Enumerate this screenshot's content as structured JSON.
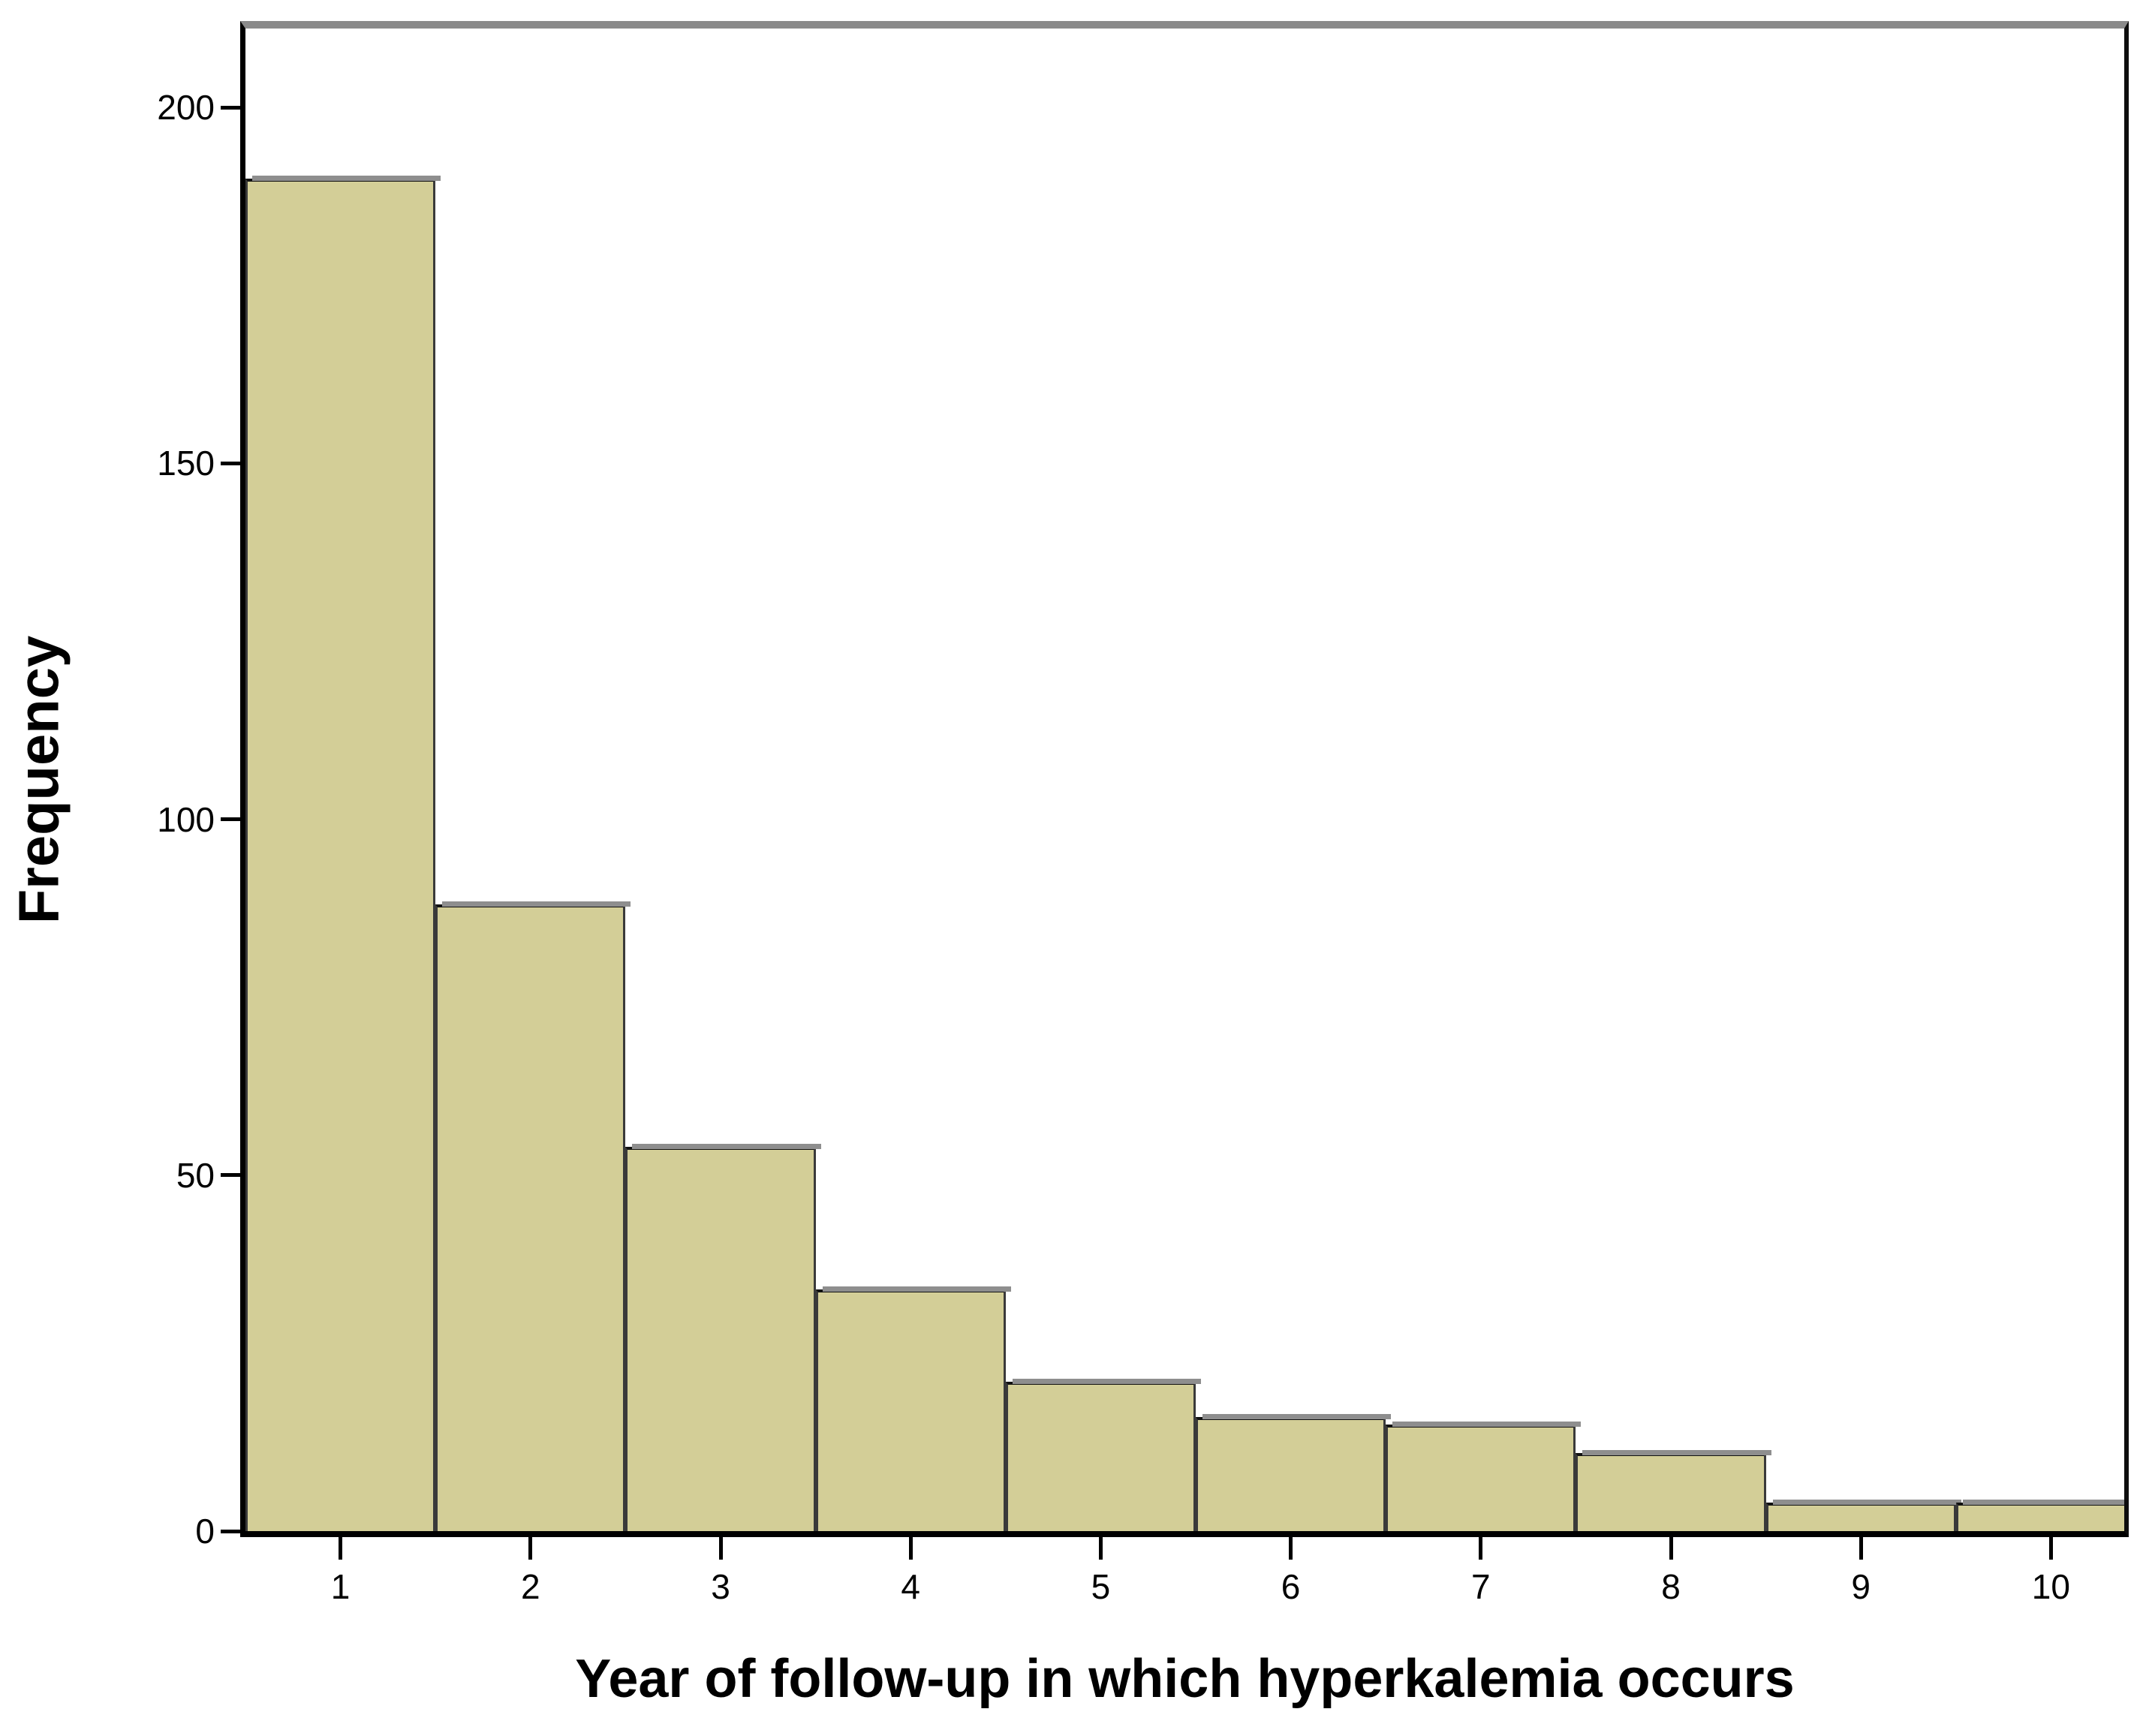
{
  "title": "Year of follow-up in which hyperkalemia occurs",
  "y_axis": {
    "label": "Frequency",
    "tick_labels": [
      "0",
      "50",
      "100",
      "150",
      "200"
    ]
  },
  "x_axis": {
    "label": "Year of follow-up in which hyperkalemia occurs",
    "tick_labels": [
      "1",
      "2",
      "3",
      "4",
      "5",
      "6",
      "7",
      "8",
      "9",
      "10"
    ]
  },
  "colors": {
    "bar_fill": "#d3ce97",
    "bar_border": "#3a3a3a",
    "bar_top_edge": "#111111",
    "bar_shadow": "#8e8e8e",
    "axis": "#000000",
    "axis_right": "#0d0d0d",
    "frame_top": "#8a8a8a",
    "background": "#ffffff"
  },
  "chart_data": {
    "type": "bar",
    "subtype": "histogram",
    "title": "Year of follow-up in which hyperkalemia occurs",
    "xlabel": "Year of follow-up in which hyperkalemia occurs",
    "ylabel": "Frequency",
    "categories": [
      1,
      2,
      3,
      4,
      5,
      6,
      7,
      8,
      9,
      10
    ],
    "values": [
      190,
      88,
      54,
      34,
      21,
      16,
      15,
      11,
      4,
      4
    ],
    "y_ticks": [
      0,
      50,
      100,
      150,
      200
    ],
    "ylim": [
      0,
      211
    ],
    "xlim": [
      0.5,
      10.5
    ],
    "grid": false,
    "legend": false
  }
}
